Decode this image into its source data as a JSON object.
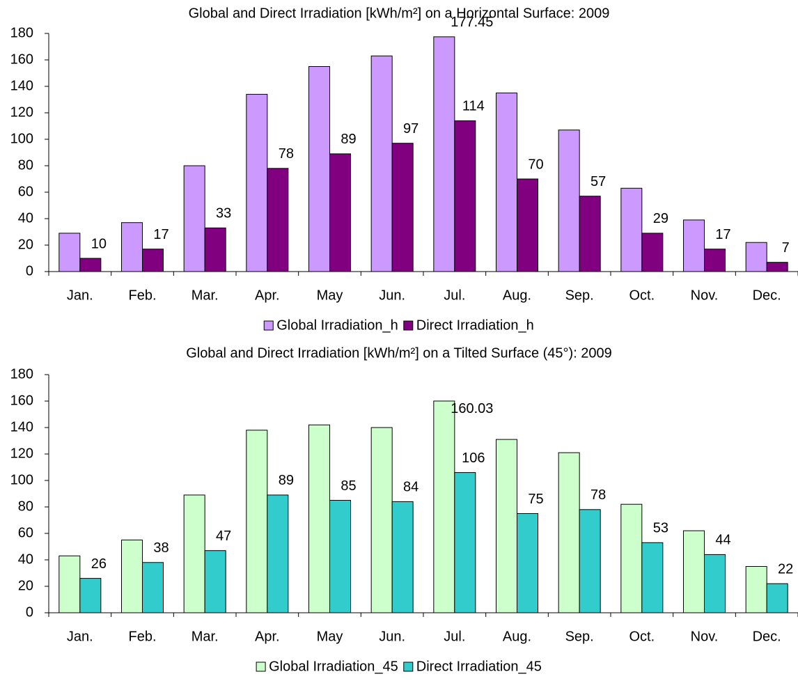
{
  "chart_data": [
    {
      "type": "bar",
      "title": "Global and Direct Irradiation [kWh/m²] on a Horizontal Surface: 2009",
      "categories": [
        "Jan.",
        "Feb.",
        "Mar.",
        "Apr.",
        "May",
        "Jun.",
        "Jul.",
        "Aug.",
        "Sep.",
        "Oct.",
        "Nov.",
        "Dec."
      ],
      "series": [
        {
          "name": "Global Irradiation_h",
          "color": "#cc99ff",
          "values": [
            29,
            37,
            80,
            134,
            155,
            163,
            177.45,
            135,
            107,
            63,
            39,
            22
          ],
          "value_labels": [
            null,
            null,
            null,
            null,
            null,
            null,
            "177.45",
            null,
            null,
            null,
            null,
            null
          ]
        },
        {
          "name": "Direct Irradiation_h",
          "color": "#800080",
          "values": [
            10,
            17,
            33,
            78,
            89,
            97,
            114,
            70,
            57,
            29,
            17,
            7
          ],
          "value_labels": [
            "10",
            "17",
            "33",
            "78",
            "89",
            "97",
            "114",
            "70",
            "57",
            "29",
            "17",
            "7"
          ]
        }
      ],
      "ylim": [
        0,
        180
      ],
      "yticks": [
        0,
        20,
        40,
        60,
        80,
        100,
        120,
        140,
        160,
        180
      ],
      "grid": false,
      "legend": "bottom"
    },
    {
      "type": "bar",
      "title": "Global and Direct Irradiation [kWh/m²] on a Tilted Surface (45°): 2009",
      "categories": [
        "Jan.",
        "Feb.",
        "Mar.",
        "Apr.",
        "May",
        "Jun.",
        "Jul.",
        "Aug.",
        "Sep.",
        "Oct.",
        "Nov.",
        "Dec."
      ],
      "series": [
        {
          "name": "Global Irradiation_45",
          "color": "#ccffcc",
          "values": [
            43,
            55,
            89,
            138,
            142,
            140,
            160.03,
            131,
            121,
            82,
            62,
            35
          ],
          "value_labels": [
            null,
            null,
            null,
            null,
            null,
            null,
            "160.03",
            null,
            null,
            null,
            null,
            null
          ]
        },
        {
          "name": "Direct Irradiation_45",
          "color": "#33cccc",
          "values": [
            26,
            38,
            47,
            89,
            85,
            84,
            106,
            75,
            78,
            53,
            44,
            22
          ],
          "value_labels": [
            "26",
            "38",
            "47",
            "89",
            "85",
            "84",
            "106",
            "75",
            "78",
            "53",
            "44",
            "22"
          ]
        }
      ],
      "ylim": [
        0,
        180
      ],
      "yticks": [
        0,
        20,
        40,
        60,
        80,
        100,
        120,
        140,
        160,
        180
      ],
      "grid": false,
      "legend": "bottom"
    }
  ]
}
